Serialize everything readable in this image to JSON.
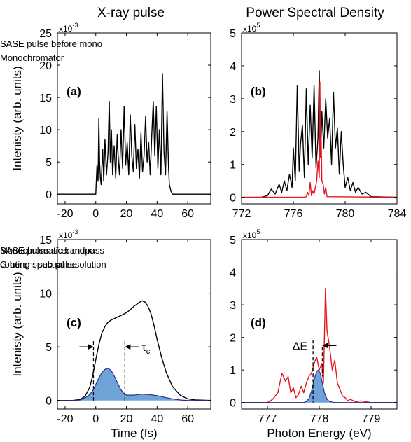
{
  "column_titles": [
    "X-ray pulse",
    "Power Spectral Density"
  ],
  "chart_data": [
    {
      "id": "a",
      "type": "line",
      "panel_label": "(a)",
      "xlim": [
        -25,
        75
      ],
      "ylim": [
        -1.5,
        25
      ],
      "xticks": [
        -20,
        0,
        20,
        40,
        60
      ],
      "yticks": [
        0,
        5,
        10,
        15,
        20,
        25
      ],
      "y_exponent": "x10",
      "y_exponent_power": "-3",
      "ylabel": "Intenisty (arb. units)",
      "xlabel": "",
      "legend": "top-right",
      "series": [
        {
          "name": "SASE pulse before mono",
          "color": "#000000",
          "x": [
            -25,
            0,
            0.8,
            1.5,
            2.0,
            2.5,
            3.0,
            3.5,
            4.5,
            5.2,
            6.0,
            7.0,
            8.0,
            8.8,
            9.5,
            10.2,
            11.0,
            12.0,
            13.0,
            14.0,
            14.8,
            15.5,
            16.5,
            17.5,
            18.5,
            19.5,
            20.5,
            21.5,
            22.5,
            23.5,
            24.5,
            25.5,
            26.5,
            27.5,
            28.5,
            29.5,
            30.5,
            31.5,
            32.5,
            33.5,
            34.5,
            35.5,
            36.5,
            37.5,
            38.5,
            39.5,
            40.5,
            41.5,
            42.5,
            43.5,
            44.5,
            45.5,
            46.5,
            47.5,
            48.0,
            49.0,
            50.0,
            75
          ],
          "y": [
            0,
            0,
            4.5,
            2.0,
            11.7,
            5.0,
            2.5,
            1.5,
            7.0,
            2.0,
            8.5,
            3.0,
            6.5,
            14.4,
            5.0,
            10.0,
            3.0,
            7.5,
            2.5,
            9.2,
            5.0,
            3.0,
            10.0,
            4.0,
            13.6,
            4.5,
            8.0,
            3.0,
            12.3,
            6.0,
            3.5,
            10.8,
            4.0,
            7.0,
            2.5,
            9.5,
            3.5,
            6.0,
            12.0,
            5.0,
            8.0,
            3.0,
            9.0,
            14.4,
            6.0,
            13.6,
            4.0,
            10.0,
            3.0,
            18.7,
            6.5,
            3.0,
            12.8,
            4.0,
            1.5,
            0.5,
            0,
            0
          ]
        }
      ]
    },
    {
      "id": "b",
      "type": "line",
      "panel_label": "(b)",
      "xlim": [
        772,
        784
      ],
      "ylim": [
        -0.2,
        5
      ],
      "xticks": [
        772,
        776,
        780,
        784
      ],
      "yticks": [
        0,
        1,
        2,
        3,
        4,
        5
      ],
      "y_exponent": "x10",
      "y_exponent_power": "5",
      "ylabel": "",
      "xlabel": "",
      "legend": "top-right",
      "series": [
        {
          "name": "SASE",
          "color": "#000000",
          "x": [
            772,
            773.5,
            774.0,
            774.3,
            774.6,
            774.9,
            775.1,
            775.3,
            775.5,
            775.7,
            775.9,
            776.0,
            776.15,
            776.3,
            776.45,
            776.55,
            776.7,
            776.85,
            777.0,
            777.15,
            777.3,
            777.45,
            777.6,
            777.75,
            777.9,
            778.0,
            778.1,
            778.2,
            778.35,
            778.5,
            778.65,
            778.8,
            778.95,
            779.1,
            779.25,
            779.4,
            779.55,
            779.7,
            779.85,
            780.0,
            780.2,
            780.4,
            780.6,
            780.8,
            781.0,
            781.3,
            781.6,
            782.0,
            784
          ],
          "y": [
            0,
            0,
            0.05,
            0.25,
            0.1,
            0.4,
            0.15,
            0.5,
            0.2,
            0.7,
            0.3,
            1.5,
            0.5,
            3.4,
            0.8,
            1.6,
            2.2,
            0.6,
            3.3,
            1.0,
            2.8,
            1.2,
            3.4,
            0.9,
            1.8,
            3.85,
            1.2,
            2.6,
            1.5,
            3.0,
            1.8,
            2.4,
            1.0,
            3.2,
            1.5,
            2.1,
            0.7,
            2.0,
            1.0,
            0.3,
            0.6,
            0.2,
            0.45,
            0.15,
            0.3,
            0.1,
            0.15,
            0.02,
            0
          ]
        },
        {
          "name": "Monochromator",
          "color": "#e8131a",
          "x": [
            772,
            776.8,
            777.0,
            777.1,
            777.2,
            777.3,
            777.4,
            777.5,
            777.6,
            777.7,
            777.8,
            777.9,
            778.0,
            778.05,
            778.1,
            778.15,
            778.2,
            778.3,
            778.4,
            778.5,
            778.6,
            784
          ],
          "y": [
            0,
            0,
            0.02,
            0.15,
            0.05,
            0.45,
            0.05,
            0.2,
            0.1,
            0.3,
            0.5,
            1.1,
            0.6,
            3.5,
            1.2,
            1.8,
            0.5,
            0.4,
            0.1,
            0.3,
            0.02,
            0
          ]
        }
      ]
    },
    {
      "id": "c",
      "type": "area",
      "panel_label": "(c)",
      "xlim": [
        -25,
        75
      ],
      "ylim": [
        -0.8,
        15
      ],
      "xticks": [
        -20,
        0,
        20,
        40,
        60
      ],
      "yticks": [
        0,
        5,
        10,
        15
      ],
      "y_exponent": "x10",
      "y_exponent_power": "-3",
      "ylabel": "Intenisty (arb. units)",
      "xlabel": "Time (fs)",
      "legend": "top-right",
      "annotations": [
        "τc"
      ],
      "series": [
        {
          "name": "SASE pulse after mono",
          "color": "#000000",
          "x": [
            -25,
            -15,
            -10,
            -7,
            -4,
            -2,
            0,
            2,
            4,
            6,
            8,
            10,
            13,
            16,
            19,
            22,
            25,
            28,
            30,
            32,
            34,
            36,
            38,
            40,
            43,
            46,
            50,
            55,
            60,
            65,
            75
          ],
          "y": [
            0,
            0,
            0.1,
            0.4,
            1.2,
            2.3,
            3.8,
            5.2,
            6.3,
            6.9,
            7.3,
            7.5,
            7.7,
            7.9,
            8.1,
            8.4,
            8.8,
            9.1,
            9.3,
            9.2,
            8.8,
            8.1,
            7.0,
            5.7,
            4.0,
            2.6,
            1.3,
            0.5,
            0.15,
            0.05,
            0
          ]
        },
        {
          "name": "coherent sub pulse",
          "color": "#2a2c8c",
          "fill": "#6fa3d8",
          "x": [
            -25,
            -15,
            -10,
            -5,
            -2,
            0,
            2,
            4,
            6,
            8,
            10,
            12,
            14,
            16,
            18,
            20,
            25,
            30,
            35,
            40,
            45,
            50,
            55,
            60,
            75
          ],
          "y": [
            0,
            0,
            0.05,
            0.4,
            0.9,
            1.5,
            2.1,
            2.6,
            2.9,
            3.0,
            2.8,
            2.3,
            1.7,
            1.1,
            0.7,
            0.5,
            0.5,
            0.6,
            0.55,
            0.45,
            0.3,
            0.15,
            0.05,
            0,
            0
          ]
        }
      ]
    },
    {
      "id": "d",
      "type": "area",
      "panel_label": "(d)",
      "xlim": [
        776.5,
        779.5
      ],
      "ylim": [
        -0.2,
        5
      ],
      "xticks": [
        777,
        778,
        779
      ],
      "yticks": [
        0,
        1,
        2,
        3,
        4,
        5
      ],
      "y_exponent": "x10",
      "y_exponent_power": "5",
      "ylabel": "",
      "xlabel": "Photon Energy (eV)",
      "legend": "top-right",
      "annotations": [
        "ΔE"
      ],
      "series": [
        {
          "name": "Monochromatic bandpass",
          "color": "#e8131a",
          "x": [
            776.5,
            777.0,
            777.1,
            777.2,
            777.28,
            777.35,
            777.4,
            777.45,
            777.5,
            777.55,
            777.6,
            777.65,
            777.7,
            777.75,
            777.8,
            777.85,
            777.9,
            777.95,
            778.0,
            778.05,
            778.08,
            778.12,
            778.15,
            778.2,
            778.25,
            778.3,
            778.35,
            778.4,
            778.45,
            778.5,
            778.55,
            778.6,
            778.7,
            778.8,
            779.0,
            779.5
          ],
          "y": [
            0,
            0,
            0.1,
            0.3,
            0.9,
            0.65,
            0.8,
            0.3,
            0.45,
            0.15,
            0.25,
            0.5,
            0.3,
            0.6,
            0.8,
            0.9,
            1.2,
            1.4,
            1.0,
            1.2,
            0.6,
            3.5,
            2.2,
            1.7,
            1.0,
            1.3,
            0.6,
            0.4,
            0.2,
            0.15,
            0.05,
            0.1,
            0.02,
            0.05,
            0,
            0
          ]
        },
        {
          "name": "Grating spectral resolution",
          "color": "#2a2c8c",
          "fill": "#6fa3d8",
          "x": [
            776.5,
            777.7,
            777.75,
            777.8,
            777.85,
            777.9,
            777.95,
            777.98,
            778.02,
            778.06,
            778.1,
            778.15,
            778.2,
            778.3,
            779.5
          ],
          "y": [
            0,
            0,
            0.03,
            0.12,
            0.35,
            0.7,
            0.95,
            1.0,
            0.9,
            0.6,
            0.3,
            0.1,
            0.03,
            0,
            0
          ]
        }
      ]
    }
  ]
}
